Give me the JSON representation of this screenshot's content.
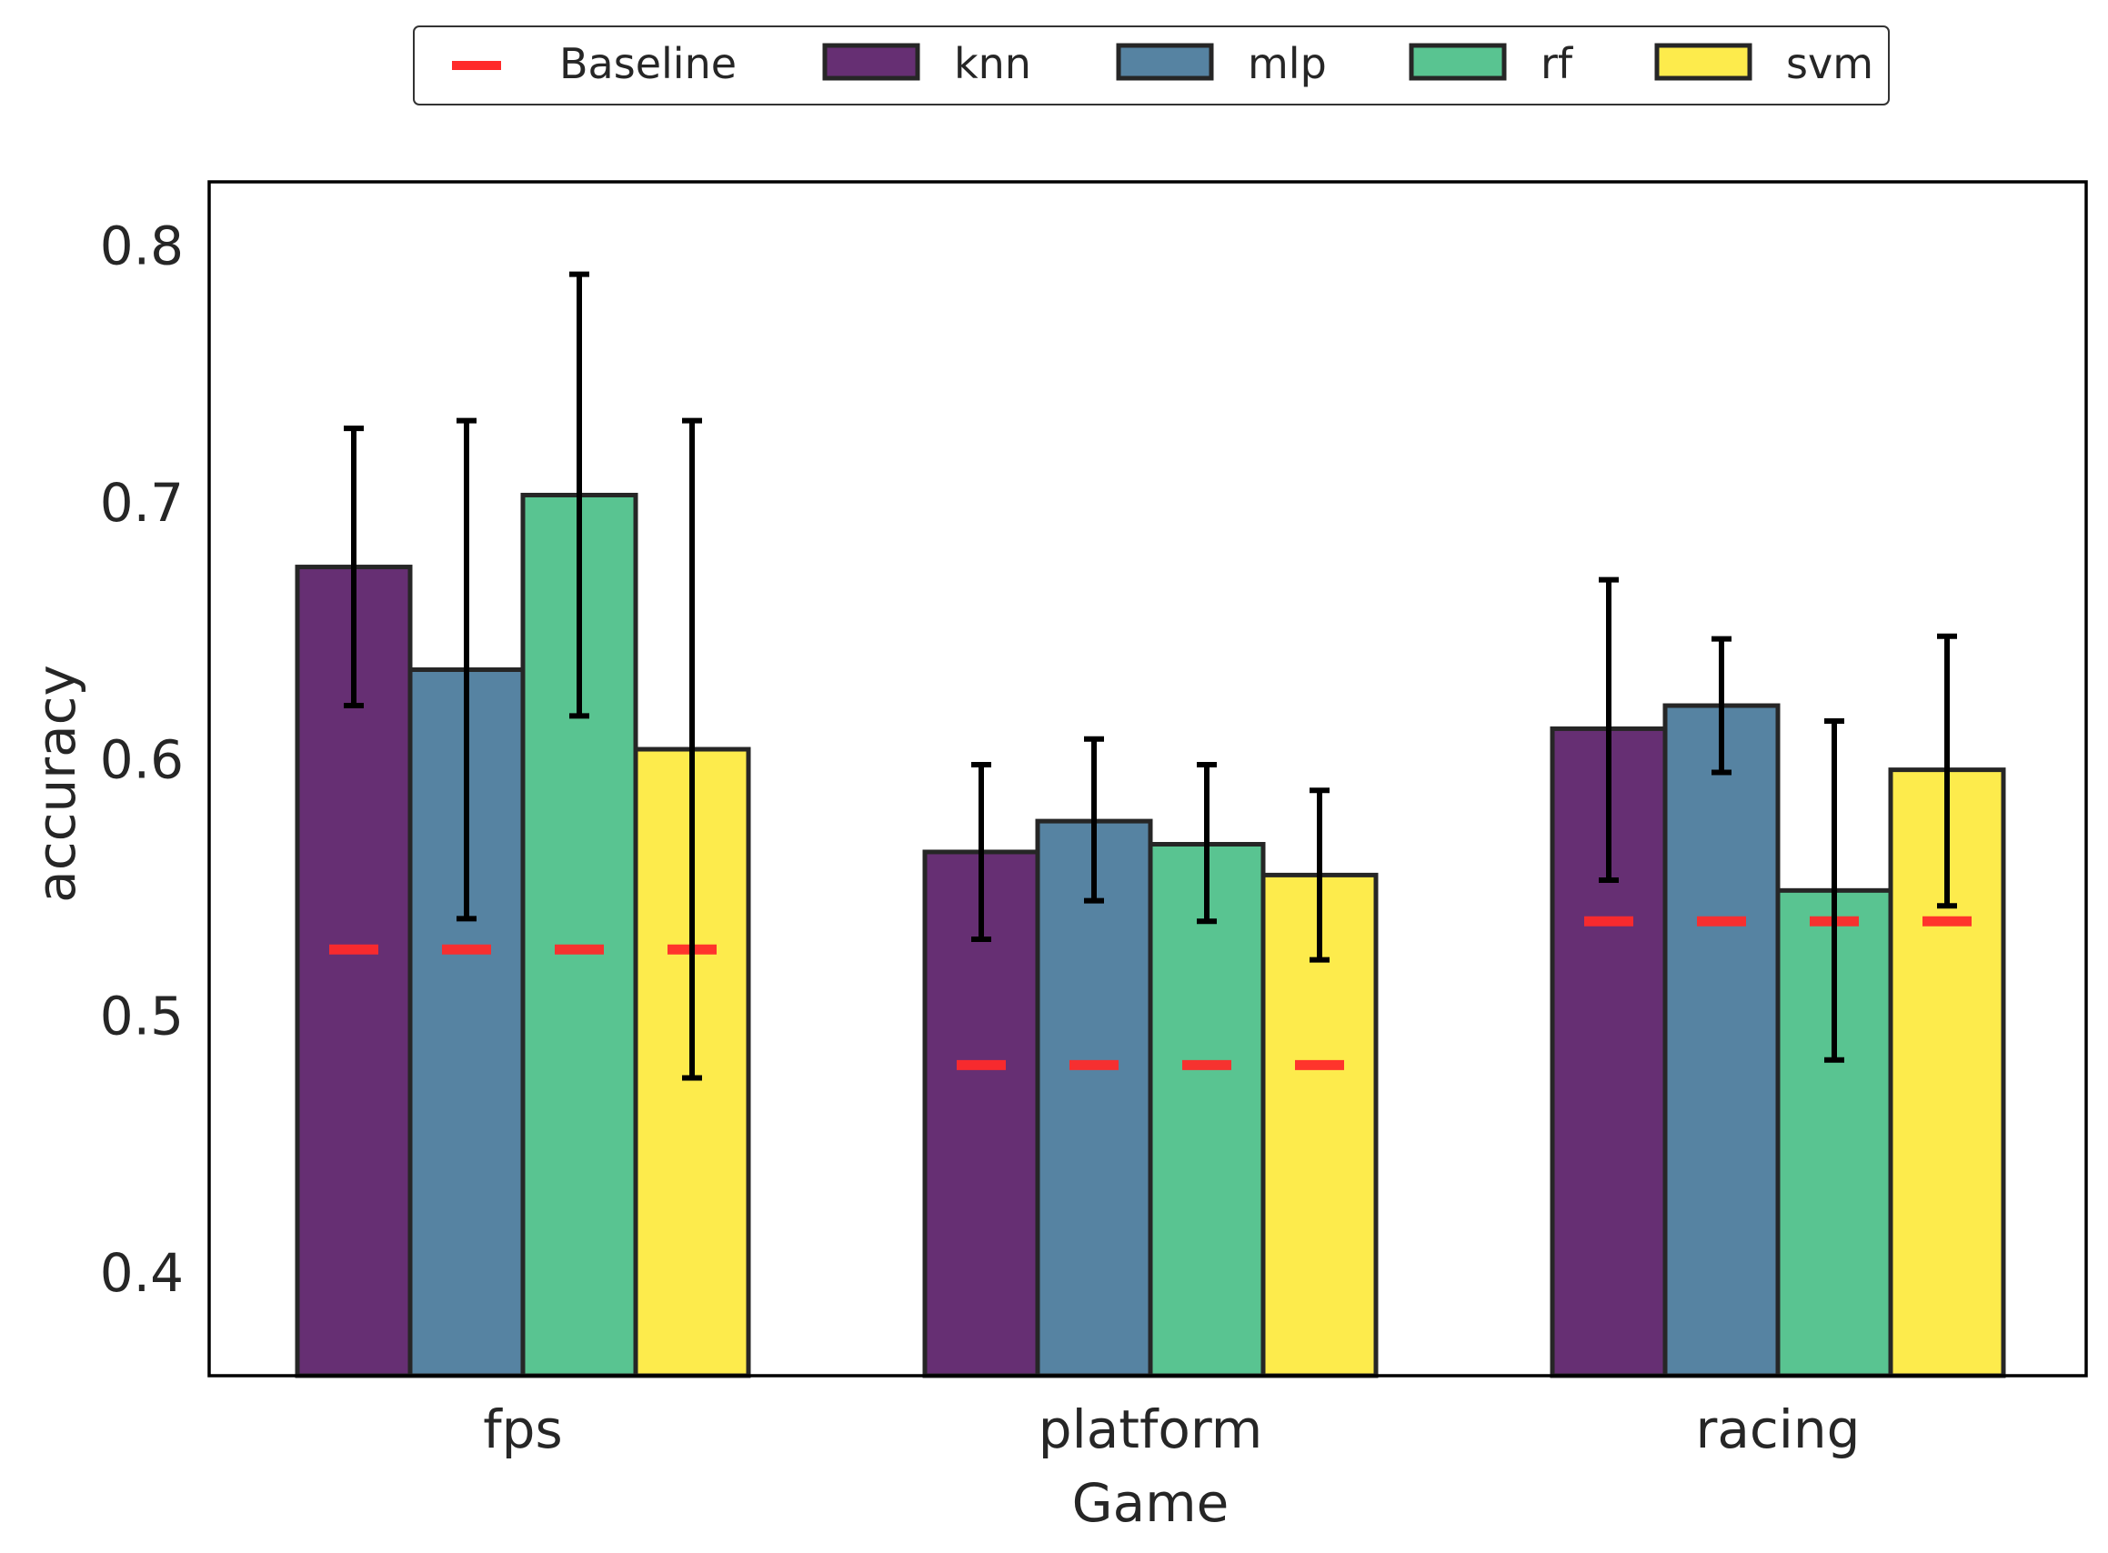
{
  "chart_data": {
    "type": "bar",
    "title": "",
    "xlabel": "Game",
    "ylabel": "accuracy",
    "categories": [
      "fps",
      "platform",
      "racing"
    ],
    "ylim": [
      0.36,
      0.825
    ],
    "yticks": [
      0.4,
      0.5,
      0.6,
      0.7,
      0.8
    ],
    "yticklabels": [
      "0.4",
      "0.5",
      "0.6",
      "0.7",
      "0.8"
    ],
    "grid": false,
    "legend_position": "top-center",
    "baseline": {
      "name": "Baseline",
      "color": "#ff2a2a",
      "values": [
        0.526,
        0.481,
        0.537
      ]
    },
    "series": [
      {
        "name": "knn",
        "color": "#440154",
        "values": [
          0.675,
          0.564,
          0.612
        ],
        "err_low": [
          0.621,
          0.53,
          0.553
        ],
        "err_high": [
          0.729,
          0.598,
          0.67
        ]
      },
      {
        "name": "mlp",
        "color": "#31688e",
        "values": [
          0.635,
          0.576,
          0.621
        ],
        "err_low": [
          0.538,
          0.545,
          0.595
        ],
        "err_high": [
          0.732,
          0.608,
          0.647
        ]
      },
      {
        "name": "rf",
        "color": "#35b779",
        "values": [
          0.703,
          0.567,
          0.549
        ],
        "err_low": [
          0.617,
          0.537,
          0.483
        ],
        "err_high": [
          0.789,
          0.598,
          0.615
        ]
      },
      {
        "name": "svm",
        "color": "#fde725",
        "values": [
          0.604,
          0.555,
          0.596
        ],
        "err_low": [
          0.476,
          0.522,
          0.543
        ],
        "err_high": [
          0.732,
          0.588,
          0.648
        ]
      }
    ]
  }
}
